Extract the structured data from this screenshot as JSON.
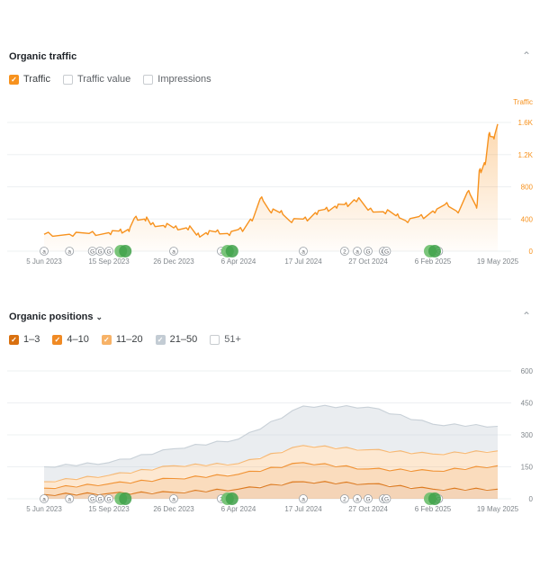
{
  "traffic_panel": {
    "title": "Organic traffic",
    "collapse_icon": "chevron-up-icon",
    "legend": [
      {
        "label": "Traffic",
        "checked": true,
        "color": "#f7921e"
      },
      {
        "label": "Traffic value",
        "checked": false,
        "color": "#c8ccd0"
      },
      {
        "label": "Impressions",
        "checked": false,
        "color": "#c8ccd0"
      }
    ]
  },
  "positions_panel": {
    "title": "Organic positions",
    "dropdown_icon": "chevron-down-icon",
    "collapse_icon": "chevron-up-icon",
    "legend": [
      {
        "label": "1–3",
        "checked": true,
        "color": "#d9700f"
      },
      {
        "label": "4–10",
        "checked": true,
        "color": "#f08a24"
      },
      {
        "label": "11–20",
        "checked": true,
        "color": "#f7b267"
      },
      {
        "label": "21–50",
        "checked": true,
        "color": "#c3ccd4"
      },
      {
        "label": "51+",
        "checked": false,
        "color": "#c8ccd0"
      }
    ]
  },
  "chart_data": [
    {
      "type": "area",
      "title": "Organic traffic",
      "ylabel": "Traffic",
      "x_tick_labels": [
        "5 Jun 2023",
        "15 Sep 2023",
        "26 Dec 2023",
        "6 Apr 2024",
        "17 Jul 2024",
        "27 Oct 2024",
        "6 Feb 2025",
        "19 May 2025"
      ],
      "y_tick_labels": [
        "0",
        "400",
        "800",
        "1.2K",
        "1.6K"
      ],
      "ylim": [
        0,
        1600
      ],
      "grid": true,
      "axis_color": "#f7921e",
      "series": [
        {
          "name": "Traffic",
          "color": "#f7921e",
          "points": [
            [
              "5 Jun 2023",
              210
            ],
            [
              "15 Jul 2023",
              210
            ],
            [
              "15 Aug 2023",
              220
            ],
            [
              "15 Sep 2023",
              230
            ],
            [
              "1 Oct 2023",
              250
            ],
            [
              "15 Oct 2023",
              270
            ],
            [
              "25 Oct 2023",
              410
            ],
            [
              "10 Nov 2023",
              400
            ],
            [
              "20 Nov 2023",
              330
            ],
            [
              "10 Dec 2023",
              320
            ],
            [
              "26 Dec 2023",
              290
            ],
            [
              "15 Jan 2024",
              290
            ],
            [
              "31 Jan 2024",
              200
            ],
            [
              "15 Feb 2024",
              230
            ],
            [
              "1 Mar 2024",
              240
            ],
            [
              "20 Mar 2024",
              220
            ],
            [
              "6 Apr 2024",
              270
            ],
            [
              "25 Apr 2024",
              400
            ],
            [
              "10 May 2024",
              650
            ],
            [
              "25 May 2024",
              500
            ],
            [
              "10 Jun 2024",
              480
            ],
            [
              "25 Jun 2024",
              380
            ],
            [
              "17 Jul 2024",
              400
            ],
            [
              "5 Aug 2024",
              480
            ],
            [
              "20 Aug 2024",
              520
            ],
            [
              "5 Sep 2024",
              560
            ],
            [
              "20 Sep 2024",
              580
            ],
            [
              "5 Oct 2024",
              640
            ],
            [
              "27 Oct 2024",
              510
            ],
            [
              "20 Nov 2024",
              490
            ],
            [
              "10 Dec 2024",
              440
            ],
            [
              "25 Dec 2024",
              380
            ],
            [
              "15 Jan 2025",
              430
            ],
            [
              "6 Feb 2025",
              500
            ],
            [
              "25 Feb 2025",
              580
            ],
            [
              "15 Mar 2025",
              500
            ],
            [
              "1 Apr 2025",
              730
            ],
            [
              "15 Apr 2025",
              560
            ],
            [
              "20 Apr 2025",
              1000
            ],
            [
              "28 Apr 2025",
              1100
            ],
            [
              "5 May 2025",
              1450
            ],
            [
              "12 May 2025",
              1420
            ],
            [
              "19 May 2025",
              1580
            ]
          ]
        }
      ],
      "annotations": [
        {
          "x": "5 Jun 2023",
          "label": "a"
        },
        {
          "x": "15 Jul 2023",
          "label": "a"
        },
        {
          "x": "20 Aug 2023",
          "label": "G"
        },
        {
          "x": "1 Sep 2023",
          "label": "G"
        },
        {
          "x": "15 Sep 2023",
          "label": "G"
        },
        {
          "x": "26 Dec 2023",
          "label": "a"
        },
        {
          "x": "10 Mar 2024",
          "label": "2"
        },
        {
          "x": "17 Jul 2024",
          "label": "a"
        },
        {
          "x": "20 Sep 2024",
          "label": "2"
        },
        {
          "x": "10 Oct 2024",
          "label": "a"
        },
        {
          "x": "27 Oct 2024",
          "label": "G"
        },
        {
          "x": "20 Nov 2024",
          "label": "G"
        },
        {
          "x": "25 Nov 2024",
          "label": "G"
        },
        {
          "x": "15 Feb 2025",
          "label": "G"
        }
      ],
      "update_markers": [
        "8 Oct 2023",
        "24 Mar 2024",
        "6 Feb 2025"
      ]
    },
    {
      "type": "area",
      "title": "Organic positions",
      "x_tick_labels": [
        "5 Jun 2023",
        "15 Sep 2023",
        "26 Dec 2023",
        "6 Apr 2024",
        "17 Jul 2024",
        "27 Oct 2024",
        "6 Feb 2025",
        "19 May 2025"
      ],
      "y_tick_labels": [
        "0",
        "150",
        "300",
        "450",
        "600"
      ],
      "ylim": [
        0,
        600
      ],
      "grid": true,
      "stacked": true,
      "series": [
        {
          "name": "1–3",
          "color": "#d9700f",
          "x": [
            "5 Jun 2023",
            "15 Sep 2023",
            "26 Dec 2023",
            "6 Apr 2024",
            "17 Jul 2024",
            "27 Oct 2024",
            "6 Feb 2025",
            "19 May 2025"
          ],
          "values": [
            20,
            25,
            30,
            45,
            80,
            70,
            45,
            45
          ]
        },
        {
          "name": "4–10",
          "color": "#f08a24",
          "x": [
            "5 Jun 2023",
            "15 Sep 2023",
            "26 Dec 2023",
            "6 Apr 2024",
            "17 Jul 2024",
            "27 Oct 2024",
            "6 Feb 2025",
            "19 May 2025"
          ],
          "values": [
            30,
            45,
            65,
            70,
            90,
            70,
            85,
            110
          ]
        },
        {
          "name": "11–20",
          "color": "#f7b267",
          "x": [
            "5 Jun 2023",
            "15 Sep 2023",
            "26 Dec 2023",
            "6 Apr 2024",
            "17 Jul 2024",
            "27 Oct 2024",
            "6 Feb 2025",
            "19 May 2025"
          ],
          "values": [
            30,
            40,
            60,
            50,
            80,
            90,
            80,
            70
          ]
        },
        {
          "name": "21–50",
          "color": "#c3ccd4",
          "x": [
            "5 Jun 2023",
            "15 Sep 2023",
            "26 Dec 2023",
            "6 Apr 2024",
            "17 Jul 2024",
            "27 Oct 2024",
            "6 Feb 2025",
            "19 May 2025"
          ],
          "values": [
            70,
            60,
            80,
            115,
            185,
            200,
            140,
            115
          ]
        }
      ],
      "annotations": [
        {
          "x": "5 Jun 2023",
          "label": "a"
        },
        {
          "x": "15 Jul 2023",
          "label": "a"
        },
        {
          "x": "20 Aug 2023",
          "label": "G"
        },
        {
          "x": "1 Sep 2023",
          "label": "G"
        },
        {
          "x": "15 Sep 2023",
          "label": "G"
        },
        {
          "x": "26 Dec 2023",
          "label": "a"
        },
        {
          "x": "10 Mar 2024",
          "label": "2"
        },
        {
          "x": "17 Jul 2024",
          "label": "a"
        },
        {
          "x": "20 Sep 2024",
          "label": "2"
        },
        {
          "x": "10 Oct 2024",
          "label": "a"
        },
        {
          "x": "27 Oct 2024",
          "label": "G"
        },
        {
          "x": "20 Nov 2024",
          "label": "G"
        },
        {
          "x": "25 Nov 2024",
          "label": "G"
        },
        {
          "x": "15 Feb 2025",
          "label": "G"
        }
      ],
      "update_markers": [
        "8 Oct 2023",
        "24 Mar 2024",
        "6 Feb 2025"
      ]
    }
  ]
}
